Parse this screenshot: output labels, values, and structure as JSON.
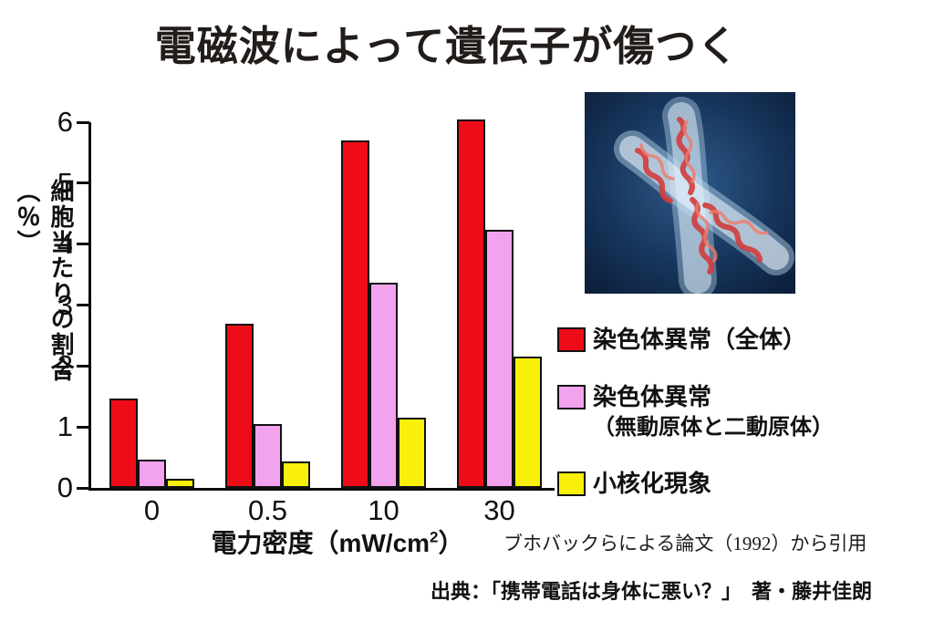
{
  "title": "電磁波によって遺伝子が傷つく",
  "chart_data": {
    "type": "bar",
    "title": "電磁波によって遺伝子が傷つく",
    "categories": [
      "0",
      "0.5",
      "10",
      "30"
    ],
    "series": [
      {
        "name": "染色体異常（全体）",
        "color": "#ee0c18",
        "values": [
          1.47,
          2.7,
          5.7,
          6.05
        ]
      },
      {
        "name": "染色体異常（無動原体と二動原体）",
        "color": "#f3a2ee",
        "values": [
          0.46,
          1.05,
          3.36,
          4.23
        ]
      },
      {
        "name": "小核化現象",
        "color": "#f8ef0a",
        "values": [
          0.15,
          0.44,
          1.15,
          2.16
        ]
      }
    ],
    "xlabel_prefix": "電力密度（mW/cm",
    "xlabel_sup": "2",
    "xlabel_suffix": "）",
    "ylabel": "細胞当たりの割合（％）",
    "ylim": [
      0,
      6
    ],
    "yticks": [
      0,
      1,
      2,
      3,
      4,
      5,
      6
    ],
    "grid": false,
    "legend_position": "right"
  },
  "legend": {
    "items": [
      {
        "label": "染色体異常（全体）",
        "label2": "",
        "color": "#ee0c18"
      },
      {
        "label": "染色体異常",
        "label2": "（無動原体と二動原体）",
        "color": "#f3a2ee"
      },
      {
        "label": "小核化現象",
        "label2": "",
        "color": "#f8ef0a"
      }
    ]
  },
  "citation": "ブホバックらによる論文（1992）から引用",
  "source": "出典：「携帯電話は身体に悪い？」　著・藤井佳朗",
  "image": {
    "alt": "chromosome-photo"
  }
}
